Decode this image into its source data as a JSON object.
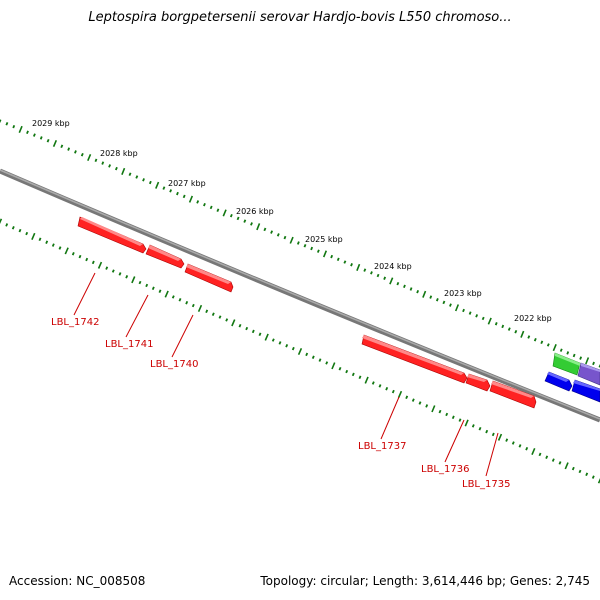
{
  "map": {
    "title": "Leptospira borgpetersenii serovar Hardjo-bovis L550 chromoso...",
    "accession": "Accession: NC_008508",
    "stats": "Topology: circular; Length: 3,614,446 bp; Genes: 2,745"
  },
  "ruler": {
    "labels": [
      "2029 kbp",
      "2028 kbp",
      "2027 kbp",
      "2026 kbp",
      "2025 kbp",
      "2024 kbp",
      "2023 kbp",
      "2022 kbp"
    ]
  },
  "genes": [
    {
      "label": "LBL_1742",
      "color": "#ff0000"
    },
    {
      "label": "LBL_1741",
      "color": "#ff0000"
    },
    {
      "label": "LBL_1740",
      "color": "#ff0000"
    },
    {
      "label": "LBL_1737",
      "color": "#ff0000"
    },
    {
      "label": "LBL_1736",
      "color": "#ff0000"
    },
    {
      "label": "LBL_1735",
      "color": "#ff0000"
    }
  ],
  "colors": {
    "backbone": "#888888",
    "tick": "#117711",
    "forward_green": "#33cc33",
    "forward_purple": "#7755cc",
    "reverse_blue": "#0000ee",
    "label_red": "#cc0000"
  }
}
